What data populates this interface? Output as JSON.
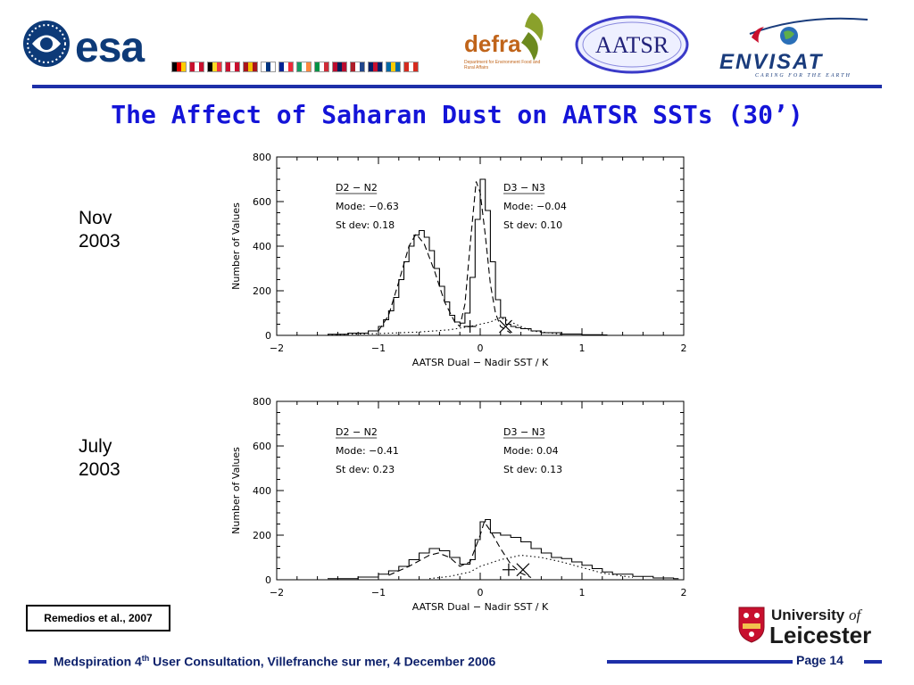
{
  "header": {
    "logos": {
      "esa": "esa",
      "defra": "defra",
      "defra_subtitle": "Department for Environment Food and Rural Affairs",
      "aatsr": "AATSR",
      "envisat": "ENVISAT",
      "envisat_tagline": "CARING FOR THE EARTH",
      "leicester_line1_a": "University ",
      "leicester_line1_b": "of",
      "leicester_line2": "Leicester"
    },
    "flag_colors": [
      [
        "#000000",
        "#dd0000",
        "#ffce00"
      ],
      [
        "#c8102e",
        "#ffffff",
        "#c8102e"
      ],
      [
        "#000000",
        "#fdda24",
        "#ef3340"
      ],
      [
        "#c8102e",
        "#ffffff",
        "#c8102e"
      ],
      [
        "#aa151b",
        "#f1bf00",
        "#aa151b"
      ],
      [
        "#ffffff",
        "#003580",
        "#ffffff"
      ],
      [
        "#002395",
        "#ffffff",
        "#ed2939"
      ],
      [
        "#169b62",
        "#ffffff",
        "#ff883e"
      ],
      [
        "#009246",
        "#ffffff",
        "#ce2b37"
      ],
      [
        "#ba0c2f",
        "#00205b",
        "#ba0c2f"
      ],
      [
        "#ae1c28",
        "#ffffff",
        "#21468b"
      ],
      [
        "#012169",
        "#c8102e",
        "#012169"
      ],
      [
        "#006aa7",
        "#fecc00",
        "#006aa7"
      ],
      [
        "#d52b1e",
        "#ffffff",
        "#d52b1e"
      ]
    ],
    "accent_color": "#1d2fa8"
  },
  "title": "The Affect of Saharan Dust on AATSR SSTs (30’)",
  "panels": [
    {
      "label_line1": "Nov",
      "label_line2": "2003"
    },
    {
      "label_line1": "July",
      "label_line2": "2003"
    }
  ],
  "chart_data": [
    {
      "type": "line",
      "xlabel": "AATSR Dual − Nadir SST / K",
      "ylabel": "Number of Values",
      "xlim": [
        -2,
        2
      ],
      "ylim": [
        0,
        800
      ],
      "x_ticks": [
        -2,
        -1,
        0,
        1,
        2
      ],
      "y_ticks": [
        0,
        200,
        400,
        600,
        800
      ],
      "annotations": {
        "left": {
          "header": "D2 − N2",
          "mode": "Mode: −0.63",
          "stdev": "St dev: 0.18"
        },
        "right": {
          "header": "D3 − N3",
          "mode": "Mode: −0.04",
          "stdev": "St dev: 0.10"
        }
      },
      "series": [
        {
          "style": "step",
          "x": [
            -1.5,
            -1.3,
            -1.1,
            -1.0,
            -0.95,
            -0.9,
            -0.85,
            -0.8,
            -0.75,
            -0.7,
            -0.65,
            -0.6,
            -0.55,
            -0.5,
            -0.45,
            -0.4,
            -0.35,
            -0.3,
            -0.25,
            -0.2,
            -0.15,
            -0.1,
            -0.05,
            0.0,
            0.05,
            0.1,
            0.15,
            0.2,
            0.25,
            0.3,
            0.35,
            0.4,
            0.5,
            0.6,
            0.8,
            1.0,
            1.2
          ],
          "y": [
            5,
            10,
            20,
            40,
            70,
            110,
            170,
            250,
            330,
            400,
            450,
            470,
            440,
            380,
            300,
            220,
            150,
            90,
            60,
            55,
            100,
            260,
            520,
            700,
            560,
            330,
            160,
            80,
            50,
            40,
            35,
            30,
            20,
            12,
            6,
            3,
            2
          ]
        },
        {
          "style": "dashed",
          "x": [
            -1.0,
            -0.9,
            -0.8,
            -0.7,
            -0.63,
            -0.55,
            -0.45,
            -0.35,
            -0.25,
            -0.2,
            -0.15,
            -0.1,
            -0.04,
            0.0,
            0.05,
            0.1,
            0.15,
            0.2,
            0.3
          ],
          "y": [
            20,
            90,
            240,
            400,
            455,
            410,
            290,
            150,
            60,
            40,
            140,
            400,
            690,
            640,
            450,
            230,
            100,
            40,
            10
          ]
        },
        {
          "style": "dotted",
          "x": [
            -1.5,
            -1.0,
            -0.6,
            -0.3,
            -0.1,
            0.0,
            0.1,
            0.2,
            0.3,
            0.5,
            0.8
          ],
          "y": [
            3,
            8,
            15,
            25,
            40,
            50,
            60,
            80,
            60,
            20,
            5
          ]
        }
      ],
      "markers": [
        {
          "symbol": "plus",
          "x": -0.1,
          "y": 40
        },
        {
          "symbol": "cross",
          "x": 0.25,
          "y": 40
        }
      ]
    },
    {
      "type": "line",
      "xlabel": "AATSR Dual − Nadir SST / K",
      "ylabel": "Number of Values",
      "xlim": [
        -2,
        2
      ],
      "ylim": [
        0,
        800
      ],
      "x_ticks": [
        -2,
        -1,
        0,
        1,
        2
      ],
      "y_ticks": [
        0,
        200,
        400,
        600,
        800
      ],
      "annotations": {
        "left": {
          "header": "D2 − N2",
          "mode": "Mode: −0.41",
          "stdev": "St dev: 0.23"
        },
        "right": {
          "header": "D3 − N3",
          "mode": "Mode: 0.04",
          "stdev": "St dev: 0.13"
        }
      },
      "series": [
        {
          "style": "step",
          "x": [
            -1.5,
            -1.2,
            -1.0,
            -0.9,
            -0.8,
            -0.7,
            -0.6,
            -0.5,
            -0.4,
            -0.3,
            -0.2,
            -0.1,
            -0.05,
            0.0,
            0.05,
            0.1,
            0.2,
            0.3,
            0.4,
            0.5,
            0.6,
            0.7,
            0.8,
            0.9,
            1.0,
            1.1,
            1.2,
            1.3,
            1.5,
            1.7,
            1.9
          ],
          "y": [
            5,
            12,
            25,
            40,
            60,
            90,
            120,
            140,
            130,
            100,
            70,
            90,
            180,
            260,
            270,
            210,
            200,
            190,
            170,
            140,
            120,
            100,
            95,
            80,
            65,
            50,
            35,
            25,
            15,
            8,
            5
          ]
        },
        {
          "style": "dashed",
          "x": [
            -0.9,
            -0.7,
            -0.5,
            -0.41,
            -0.3,
            -0.2,
            -0.1,
            0.0,
            0.04,
            0.1,
            0.2,
            0.3,
            0.4,
            0.5
          ],
          "y": [
            20,
            60,
            110,
            120,
            100,
            60,
            80,
            200,
            260,
            220,
            140,
            70,
            30,
            10
          ]
        },
        {
          "style": "dotted",
          "x": [
            -0.5,
            -0.3,
            -0.1,
            0.0,
            0.2,
            0.4,
            0.6,
            0.8,
            1.0,
            1.2,
            1.5
          ],
          "y": [
            5,
            15,
            35,
            60,
            90,
            110,
            100,
            80,
            55,
            30,
            10
          ]
        }
      ],
      "markers": [
        {
          "symbol": "plus",
          "x": 0.28,
          "y": 45
        },
        {
          "symbol": "cross",
          "x": 0.42,
          "y": 45
        }
      ]
    }
  ],
  "reference": "Remedios et al., 2007",
  "footer": {
    "text_before": "Medspiration 4",
    "text_sup": "th",
    "text_after": " User Consultation, Villefranche sur mer, 4 December 2006",
    "page": "Page 14"
  }
}
